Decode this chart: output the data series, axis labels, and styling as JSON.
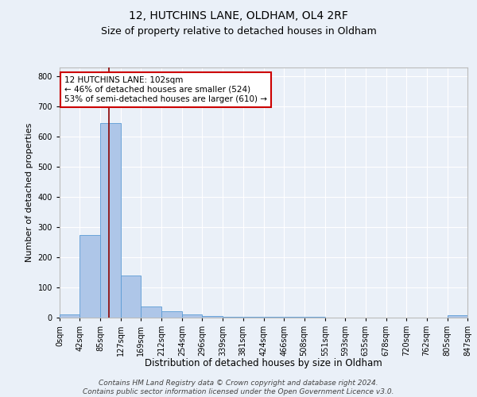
{
  "title1": "12, HUTCHINS LANE, OLDHAM, OL4 2RF",
  "title2": "Size of property relative to detached houses in Oldham",
  "xlabel": "Distribution of detached houses by size in Oldham",
  "ylabel": "Number of detached properties",
  "bin_edges": [
    0,
    42,
    85,
    127,
    169,
    212,
    254,
    296,
    339,
    381,
    424,
    466,
    508,
    551,
    593,
    635,
    678,
    720,
    762,
    805,
    847
  ],
  "bin_counts": [
    10,
    275,
    645,
    140,
    37,
    20,
    10,
    5,
    3,
    2,
    2,
    2,
    2,
    1,
    1,
    1,
    1,
    1,
    1,
    8
  ],
  "bar_color": "#aec6e8",
  "bar_edge_color": "#5b9bd5",
  "property_size": 102,
  "vline_color": "#8b0000",
  "annotation_text": "12 HUTCHINS LANE: 102sqm\n← 46% of detached houses are smaller (524)\n53% of semi-detached houses are larger (610) →",
  "annotation_box_color": "white",
  "annotation_box_edge_color": "#cc0000",
  "ylim": [
    0,
    830
  ],
  "yticks": [
    0,
    100,
    200,
    300,
    400,
    500,
    600,
    700,
    800
  ],
  "footnote": "Contains HM Land Registry data © Crown copyright and database right 2024.\nContains public sector information licensed under the Open Government Licence v3.0.",
  "background_color": "#eaf0f8",
  "grid_color": "#ffffff",
  "title1_fontsize": 10,
  "title2_fontsize": 9,
  "ylabel_fontsize": 8,
  "xlabel_fontsize": 8.5,
  "tick_fontsize": 7,
  "annot_fontsize": 7.5,
  "footnote_fontsize": 6.5
}
